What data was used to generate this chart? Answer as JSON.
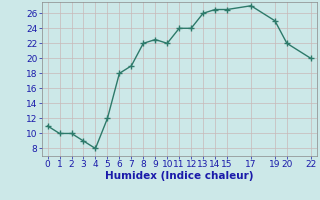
{
  "x": [
    0,
    1,
    2,
    3,
    4,
    5,
    6,
    7,
    8,
    9,
    10,
    11,
    12,
    13,
    14,
    15,
    17,
    19,
    20,
    22
  ],
  "y": [
    11,
    10,
    10,
    9,
    8,
    12,
    18,
    19,
    22,
    22.5,
    22,
    24,
    24,
    26,
    26.5,
    26.5,
    27,
    25,
    22,
    20
  ],
  "xlabel": "Humidex (Indice chaleur)",
  "xlim": [
    -0.5,
    22.5
  ],
  "ylim": [
    7,
    27.5
  ],
  "yticks": [
    8,
    10,
    12,
    14,
    16,
    18,
    20,
    22,
    24,
    26
  ],
  "xticks": [
    0,
    1,
    2,
    3,
    4,
    5,
    6,
    7,
    8,
    9,
    10,
    11,
    12,
    13,
    14,
    15,
    17,
    19,
    20,
    22
  ],
  "line_color": "#2d7a6a",
  "bg_color": "#cce8e8",
  "grid_major_color": "#c8b8b8",
  "grid_minor_color": "#ddd0d0",
  "font_color": "#1a1aaa",
  "tick_fontsize": 6.5,
  "xlabel_fontsize": 7.5
}
